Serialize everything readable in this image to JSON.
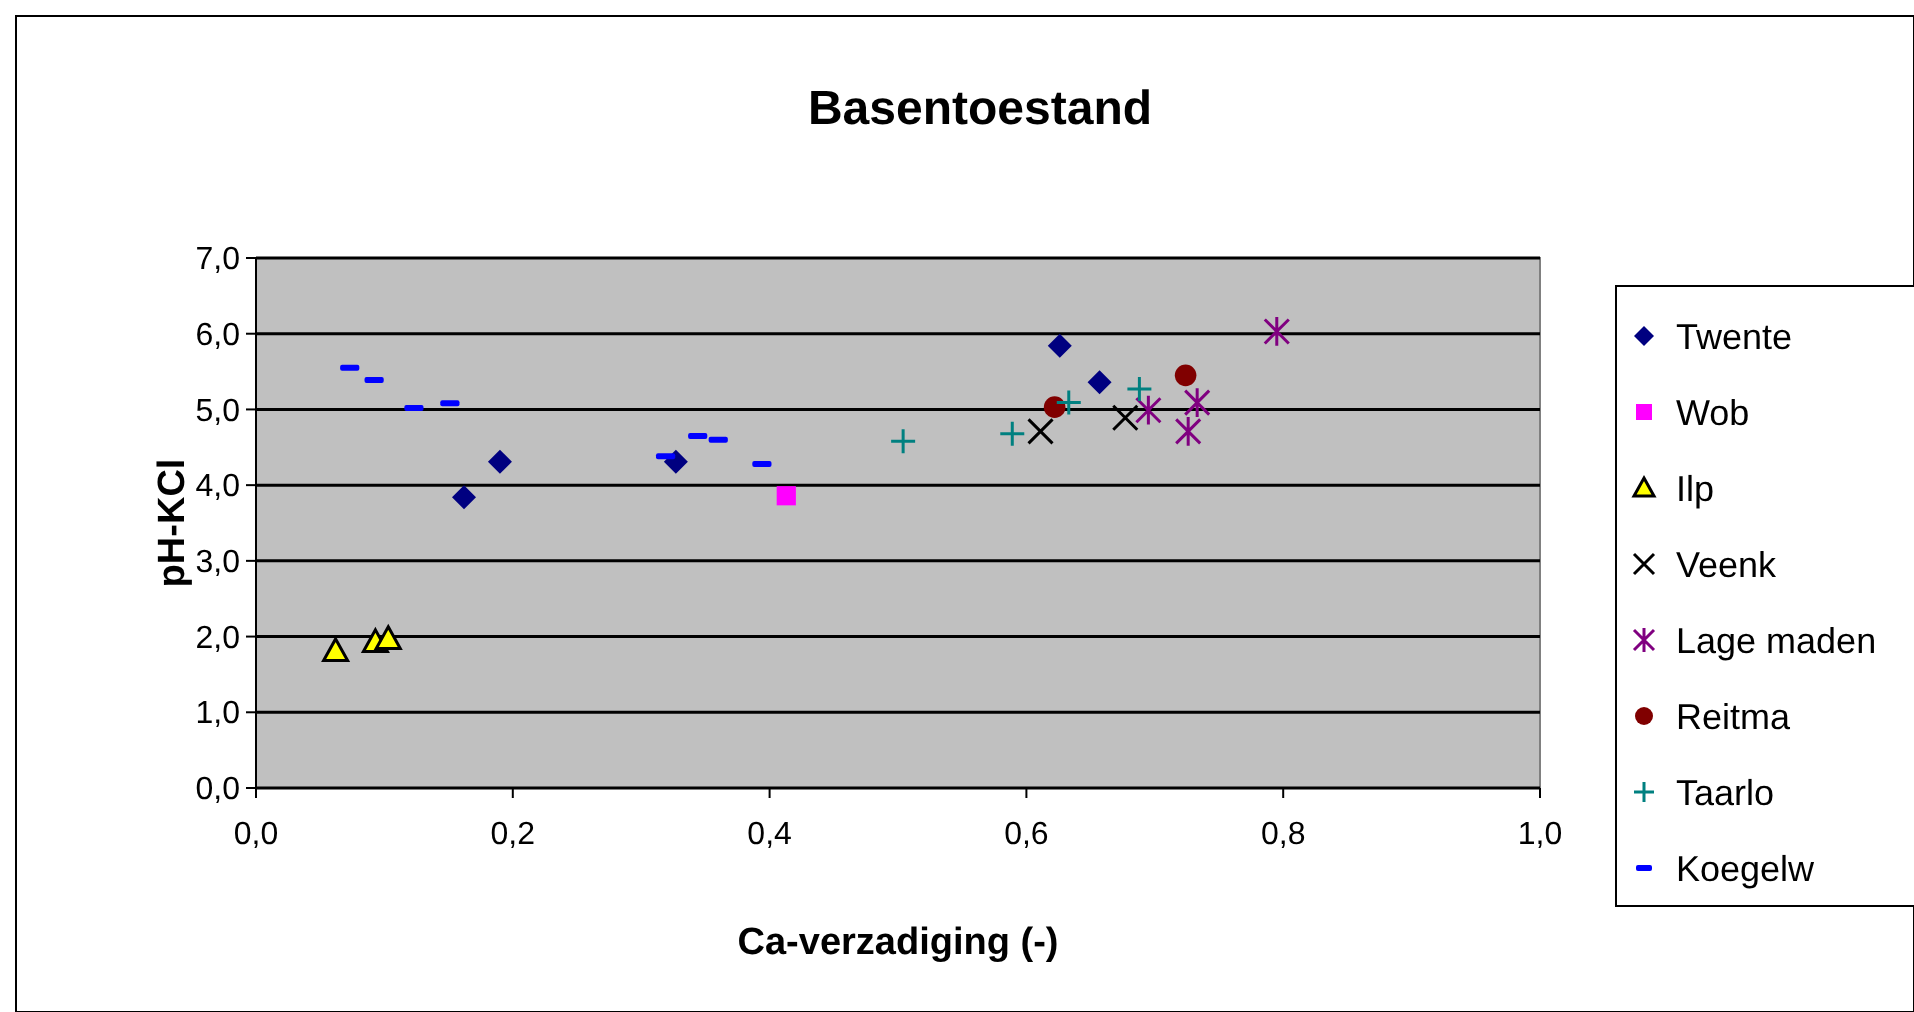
{
  "chart_data": {
    "type": "scatter",
    "title": "Basentoestand",
    "xlabel": "Ca-verzadiging (-)",
    "ylabel": "pH-KCl",
    "xlim": [
      0,
      1
    ],
    "ylim": [
      0,
      7
    ],
    "xticks": [
      {
        "value": 0,
        "label": "0,0"
      },
      {
        "value": 0.2,
        "label": "0,2"
      },
      {
        "value": 0.4,
        "label": "0,4"
      },
      {
        "value": 0.6,
        "label": "0,6"
      },
      {
        "value": 0.8,
        "label": "0,8"
      },
      {
        "value": 1,
        "label": "1,0"
      }
    ],
    "yticks": [
      {
        "value": 0,
        "label": "0,0"
      },
      {
        "value": 1,
        "label": "1,0"
      },
      {
        "value": 2,
        "label": "2,0"
      },
      {
        "value": 3,
        "label": "3,0"
      },
      {
        "value": 4,
        "label": "4,0"
      },
      {
        "value": 5,
        "label": "5,0"
      },
      {
        "value": 6,
        "label": "6,0"
      },
      {
        "value": 7,
        "label": "7,0"
      }
    ],
    "grid": "y",
    "legend": "right",
    "series": [
      {
        "name": "Twente",
        "color": "#000080",
        "marker": "diamond",
        "x": [
          0.162,
          0.19,
          0.327,
          0.626,
          0.657
        ],
        "values": [
          3.84,
          4.31,
          4.31,
          5.84,
          5.36
        ]
      },
      {
        "name": "Wob",
        "color": "#ff00ff",
        "marker": "square",
        "x": [
          0.413
        ],
        "values": [
          3.86
        ]
      },
      {
        "name": "Ilp",
        "color": "#ffff00",
        "marker": "triangle",
        "x": [
          0.062,
          0.093,
          0.103
        ],
        "values": [
          1.81,
          1.93,
          1.97
        ]
      },
      {
        "name": "Veenk",
        "color": "#000000",
        "marker": "cross",
        "x": [
          0.611,
          0.677
        ],
        "values": [
          4.71,
          4.89
        ]
      },
      {
        "name": "Lage maden",
        "color": "#800080",
        "x": [
          0.795,
          0.695,
          0.733,
          0.726
        ],
        "values": [
          6.03,
          4.99,
          5.09,
          4.71
        ]
      },
      {
        "name": "Reitma",
        "color": "#800000",
        "marker": "circle",
        "x": [
          0.622,
          0.724
        ],
        "values": [
          5.03,
          5.45
        ]
      },
      {
        "name": "Taarlo",
        "color": "#008080",
        "marker": "plus",
        "x": [
          0.504,
          0.589,
          0.633,
          0.688
        ],
        "values": [
          4.58,
          4.68,
          5.09,
          5.27
        ]
      },
      {
        "name": "Koegelw",
        "color": "#0000ff",
        "x": [
          0.073,
          0.092,
          0.123,
          0.151,
          0.319,
          0.344,
          0.36,
          0.394
        ],
        "values": [
          5.55,
          5.39,
          5.02,
          5.08,
          4.38,
          4.65,
          4.6,
          4.28
        ]
      }
    ]
  }
}
